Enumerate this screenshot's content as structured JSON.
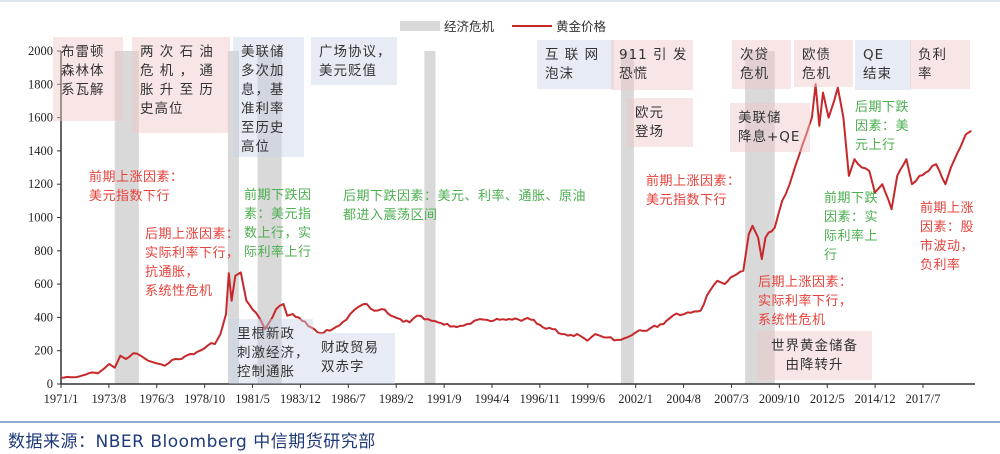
{
  "legend": {
    "recession_label": "经济危机",
    "price_label": "黄金价格"
  },
  "footer": {
    "source": "数据来源：NBER Bloomberg  中信期货研究部"
  },
  "colors": {
    "line": "#c6282b",
    "recession": "#d9d9d9",
    "annotation_up": "#e8413b",
    "annotation_down": "#4caf50",
    "note_pink": "#f0c8c8",
    "note_blue": "#c8d2e6",
    "footer_text": "#1f3a7a"
  },
  "notes": [
    {
      "id": "bretton-woods",
      "text": "布雷顿\n森林体\n系瓦解",
      "style": "pink"
    },
    {
      "id": "oil-crisis",
      "text": "两 次 石 油\n危 机 ， 通\n胀 升 至 历\n史高位",
      "style": "pink"
    },
    {
      "id": "fed-hikes",
      "text": "美联储\n多次加\n息，基\n准利率\n至历史\n高位",
      "style": "blue"
    },
    {
      "id": "plaza-accord",
      "text": "广场协议，\n美元贬值",
      "style": "blue"
    },
    {
      "id": "reagan",
      "text": "里根新政\n刺激经济，\n控制通胀",
      "style": "blue"
    },
    {
      "id": "twin-deficit",
      "text": "财政贸易\n双赤字",
      "style": "blue"
    },
    {
      "id": "dotcom",
      "text": "互 联 网\n泡沫",
      "style": "blue"
    },
    {
      "id": "911",
      "text": "911 引 发\n恐慌",
      "style": "pink"
    },
    {
      "id": "euro",
      "text": "欧元\n登场",
      "style": "pink"
    },
    {
      "id": "subprime",
      "text": "次贷\n危机",
      "style": "pink"
    },
    {
      "id": "euro-debt",
      "text": "欧债\n危机",
      "style": "pink"
    },
    {
      "id": "qe-end",
      "text": "QE\n结束",
      "style": "blue"
    },
    {
      "id": "neg-rate",
      "text": "负利\n率",
      "style": "pink"
    },
    {
      "id": "fed-cut-qe",
      "text": "美联储\n降息+QE",
      "style": "pink"
    },
    {
      "id": "reserves",
      "text": "世界黄金储备\n由降转升",
      "style": "pink"
    }
  ],
  "annotations": [
    {
      "id": "a1",
      "text": "前期上涨因素：\n美元指数下行",
      "tone": "red"
    },
    {
      "id": "a2",
      "text": "后期上涨因素：\n实际利率下行，\n抗通胀，\n系统性危机",
      "tone": "red"
    },
    {
      "id": "a3",
      "text": "前期下跌因\n素：美元指\n数上行，实\n际利率上行",
      "tone": "green"
    },
    {
      "id": "a4",
      "text": "后期下跌因素：美元、利率、通胀、原油\n都进入震荡区间",
      "tone": "green"
    },
    {
      "id": "a5",
      "text": "前期上涨因素：\n美元指数下行",
      "tone": "red"
    },
    {
      "id": "a6",
      "text": "后期上涨因素：\n实际利率下行，\n系统性危机",
      "tone": "red"
    },
    {
      "id": "a7",
      "text": "后期下跌\n因素：美\n元上行",
      "tone": "green"
    },
    {
      "id": "a8",
      "text": "前期下跌\n因素：实\n际利率上\n行",
      "tone": "green"
    },
    {
      "id": "a9",
      "text": "前期上涨\n因素：股\n市波动，\n负利率",
      "tone": "red"
    }
  ],
  "chart_data": {
    "type": "line",
    "title": "",
    "xlabel": "",
    "ylabel": "",
    "ylim": [
      0,
      2000
    ],
    "yticks": [
      0,
      200,
      400,
      600,
      800,
      1000,
      1200,
      1400,
      1600,
      1800,
      2000
    ],
    "xtick_labels": [
      "1971/1",
      "1973/8",
      "1976/3",
      "1978/10",
      "1981/5",
      "1983/12",
      "1986/7",
      "1989/2",
      "1991/9",
      "1994/4",
      "1996/11",
      "1999/6",
      "2002/1",
      "2004/8",
      "2007/3",
      "2009/10",
      "2012/5",
      "2014/12",
      "2017/7"
    ],
    "legend": [
      "经济危机",
      "黄金价格"
    ],
    "legend_position": "top-center",
    "grid": false,
    "recessions": [
      {
        "start": 1973.9,
        "end": 1975.2
      },
      {
        "start": 1980.0,
        "end": 1980.6
      },
      {
        "start": 1981.6,
        "end": 1982.9
      },
      {
        "start": 1990.6,
        "end": 1991.2
      },
      {
        "start": 2001.2,
        "end": 2001.9
      },
      {
        "start": 2007.9,
        "end": 2009.5
      }
    ],
    "series": [
      {
        "name": "黄金价格",
        "x": [
          1971.0,
          1971.5,
          1972.0,
          1972.5,
          1973.0,
          1973.3,
          1973.6,
          1973.9,
          1974.2,
          1974.5,
          1974.9,
          1975.3,
          1975.7,
          1976.0,
          1976.6,
          1977.0,
          1977.5,
          1978.0,
          1978.5,
          1978.9,
          1979.3,
          1979.6,
          1979.9,
          1980.05,
          1980.2,
          1980.4,
          1980.7,
          1981.0,
          1981.5,
          1982.0,
          1982.4,
          1982.6,
          1983.0,
          1983.2,
          1983.5,
          1984.0,
          1984.5,
          1985.0,
          1985.5,
          1986.0,
          1986.6,
          1987.0,
          1987.5,
          1987.9,
          1988.3,
          1988.8,
          1989.3,
          1989.8,
          1990.2,
          1990.8,
          1991.5,
          1992.0,
          1992.7,
          1993.3,
          1993.6,
          1994.0,
          1995.0,
          1996.0,
          1996.5,
          1997.0,
          1997.5,
          1998.0,
          1998.5,
          1999.0,
          1999.4,
          1999.8,
          2000.3,
          2001.0,
          2001.4,
          2002.0,
          2002.6,
          2003.0,
          2003.5,
          2004.0,
          2004.8,
          2005.5,
          2006.0,
          2006.4,
          2006.8,
          2007.3,
          2007.8,
          2008.1,
          2008.3,
          2008.6,
          2008.8,
          2009.0,
          2009.5,
          2009.9,
          2010.3,
          2010.8,
          2011.2,
          2011.5,
          2011.7,
          2011.9,
          2012.1,
          2012.4,
          2012.7,
          2012.9,
          2013.2,
          2013.5,
          2013.8,
          2014.2,
          2014.6,
          2014.9,
          2015.3,
          2015.8,
          2016.1,
          2016.6,
          2016.9,
          2017.3,
          2017.8,
          2018.2,
          2018.7,
          2019.0,
          2019.5,
          2019.8,
          2020.1
        ],
        "values": [
          37,
          40,
          46,
          65,
          65,
          90,
          120,
          98,
          170,
          150,
          185,
          170,
          140,
          130,
          110,
          145,
          150,
          180,
          200,
          230,
          240,
          300,
          420,
          665,
          500,
          650,
          670,
          500,
          430,
          330,
          400,
          450,
          480,
          410,
          420,
          380,
          340,
          305,
          320,
          350,
          420,
          460,
          480,
          440,
          450,
          410,
          390,
          370,
          410,
          390,
          365,
          345,
          350,
          380,
          390,
          385,
          385,
          390,
          385,
          340,
          330,
          300,
          295,
          290,
          260,
          300,
          280,
          265,
          275,
          310,
          320,
          350,
          360,
          410,
          430,
          440,
          560,
          620,
          600,
          650,
          680,
          900,
          950,
          880,
          750,
          880,
          940,
          1100,
          1200,
          1370,
          1500,
          1600,
          1800,
          1550,
          1750,
          1600,
          1700,
          1780,
          1600,
          1250,
          1350,
          1300,
          1280,
          1150,
          1200,
          1050,
          1250,
          1350,
          1200,
          1250,
          1280,
          1320,
          1200,
          1300,
          1420,
          1500,
          1520
        ]
      }
    ]
  }
}
